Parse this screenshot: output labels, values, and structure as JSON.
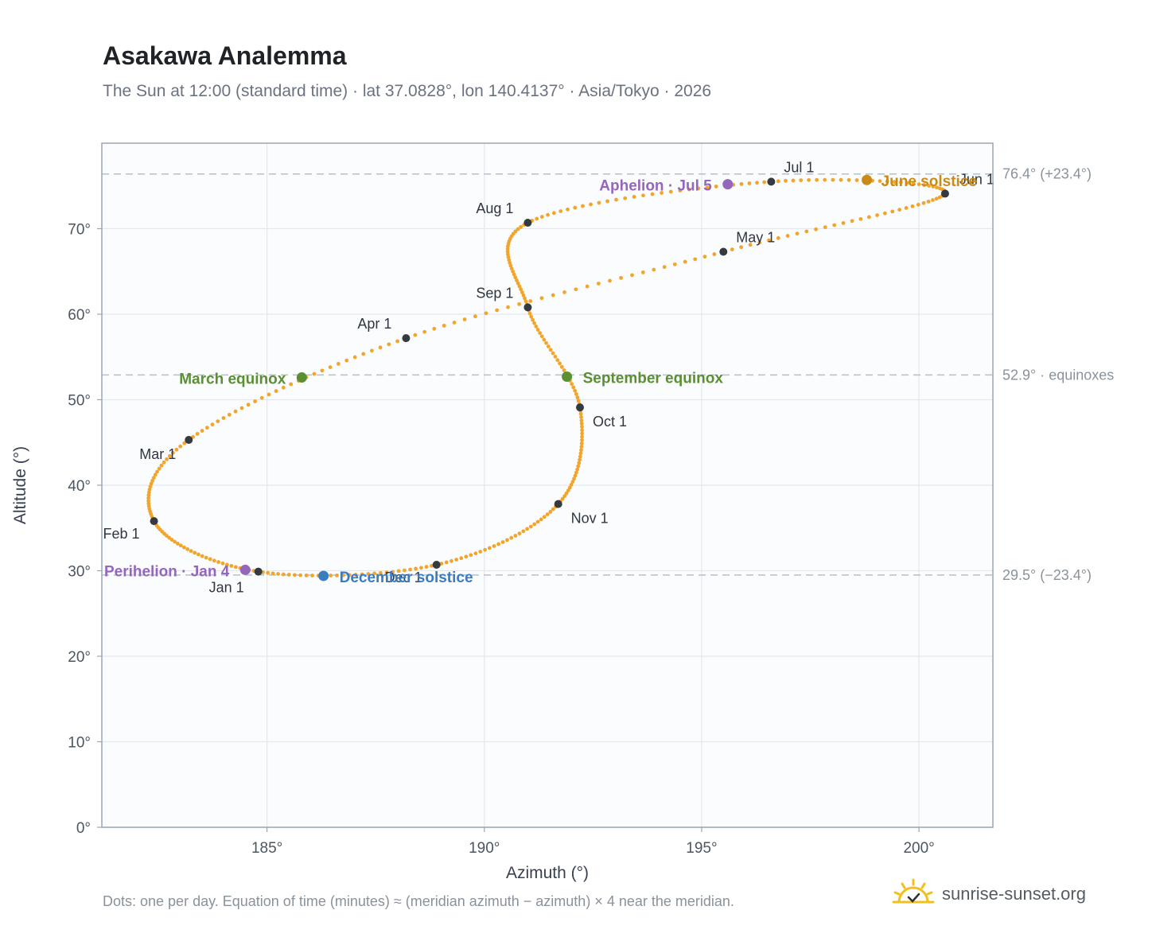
{
  "header": {
    "title": "Asakawa Analemma",
    "subtitle": "The Sun at 12:00 (standard time) · lat 37.0828°, lon 140.4137° · Asia/Tokyo · 2026"
  },
  "footer": {
    "note": "Dots: one per day. Equation of time (minutes) ≈ (meridian azimuth − azimuth) × 4 near the meridian.",
    "brand": "sunrise-sunset.org"
  },
  "colors": {
    "curve": "#f2a52a",
    "month_marker": "#353a40",
    "equinox": "#5a8f32",
    "june_solstice": "#c98a16",
    "december_solstice": "#3b7bbf",
    "apsis": "#9467bd",
    "plot_bg": "#fbfcfe",
    "grid": "#e3e8ee",
    "frame": "#9ba6b4",
    "ref_line": "#b3c0cc"
  },
  "chart_data": {
    "type": "scatter",
    "title": "Asakawa Analemma",
    "xlabel": "Azimuth (°)",
    "ylabel": "Altitude (°)",
    "xlim": [
      181.2,
      201.7
    ],
    "ylim": [
      0,
      80
    ],
    "x_ticks": [
      185,
      190,
      195,
      200
    ],
    "x_tick_labels": [
      "185°",
      "190°",
      "195°",
      "200°"
    ],
    "y_ticks": [
      0,
      10,
      20,
      30,
      40,
      50,
      60,
      70
    ],
    "y_tick_labels": [
      "0°",
      "10°",
      "20°",
      "30°",
      "40°",
      "50°",
      "60°",
      "70°"
    ],
    "grid": true,
    "reference_lines": [
      {
        "y": 76.4,
        "label": "76.4° (+23.4°)"
      },
      {
        "y": 52.9,
        "label": "52.9° · equinoxes"
      },
      {
        "y": 29.5,
        "label": "29.5° (−23.4°)"
      }
    ],
    "month_markers": [
      {
        "label": "Jan 1",
        "azimuth": 184.8,
        "altitude": 29.9
      },
      {
        "label": "Feb 1",
        "azimuth": 182.4,
        "altitude": 35.8
      },
      {
        "label": "Mar 1",
        "azimuth": 183.2,
        "altitude": 45.3
      },
      {
        "label": "Apr 1",
        "azimuth": 188.2,
        "altitude": 57.2
      },
      {
        "label": "May 1",
        "azimuth": 195.5,
        "altitude": 67.3
      },
      {
        "label": "Jun 1",
        "azimuth": 200.6,
        "altitude": 74.1
      },
      {
        "label": "Jul 1",
        "azimuth": 196.6,
        "altitude": 75.5
      },
      {
        "label": "Aug 1",
        "azimuth": 191.0,
        "altitude": 70.7
      },
      {
        "label": "Sep 1",
        "azimuth": 191.0,
        "altitude": 60.8
      },
      {
        "label": "Oct 1",
        "azimuth": 192.2,
        "altitude": 49.1
      },
      {
        "label": "Nov 1",
        "azimuth": 191.7,
        "altitude": 37.8
      },
      {
        "label": "Dec 1",
        "azimuth": 188.9,
        "altitude": 30.7
      }
    ],
    "events": [
      {
        "label": "March equinox",
        "azimuth": 185.8,
        "altitude": 52.6,
        "kind": "equinox"
      },
      {
        "label": "September equinox",
        "azimuth": 191.9,
        "altitude": 52.7,
        "kind": "equinox"
      },
      {
        "label": "June solstice",
        "azimuth": 198.8,
        "altitude": 75.7,
        "kind": "june_solstice"
      },
      {
        "label": "December solstice",
        "azimuth": 186.3,
        "altitude": 29.4,
        "kind": "december_solstice"
      },
      {
        "label": "Perihelion · Jan 4",
        "azimuth": 184.5,
        "altitude": 30.1,
        "kind": "apsis"
      },
      {
        "label": "Aphelion · Jul 5",
        "azimuth": 195.6,
        "altitude": 75.2,
        "kind": "apsis"
      }
    ]
  }
}
